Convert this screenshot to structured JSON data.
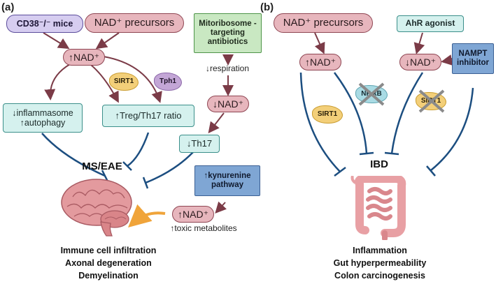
{
  "colors": {
    "arrow": "#7b3b47",
    "inhibit_line": "#1c4e80",
    "orange_arrow": "#f0a43a",
    "nad_fill": "#e7b6bd",
    "teal_fill": "#d5f1ee",
    "green_fill": "#c9e8c2",
    "blue_fill": "#7fa6d4",
    "sirt_fill": "#f3cf79"
  },
  "panel_a": {
    "label": "(a)",
    "cd38": "CD38⁻/⁻ mice",
    "nad_precursors": "NAD⁺ precursors",
    "mitoribosome": "Mitoribosome -targeting antibiotics",
    "nad_up": "↑NAD⁺",
    "sirt1": "SIRT1",
    "tph1": "Tph1",
    "respiration": "↓respiration",
    "inflammasome": "↓inflammasome",
    "autophagy": "↑autophagy",
    "treg": "↑Treg/Th17 ratio",
    "nad_down": "↓NAD⁺",
    "th17": "↓Th17",
    "disease": "MS/EAE",
    "kynurenine": "↑kynurenine pathway",
    "nad_up2": "↑NAD⁺",
    "toxic": "↑toxic metabolites",
    "outcomes": [
      "Immune cell infiltration",
      "Axonal degeneration",
      "Demyelination"
    ],
    "organ_icon": "brain-icon"
  },
  "panel_b": {
    "label": "(b)",
    "nad_precursors": "NAD⁺ precursors",
    "ahr": "AhR agonist",
    "nampt": "NAMPT inhibitor",
    "nad_up": "↑NAD⁺",
    "nad_down": "↓NAD⁺",
    "nfkb": "NF-κB",
    "sirt1_left": "SIRT1",
    "sirt1_right": "SIRT1",
    "disease": "IBD",
    "outcomes": [
      "Inflammation",
      "Gut hyperpermeability",
      "Colon carcinogenesis"
    ],
    "organ_icon": "intestine-icon"
  }
}
